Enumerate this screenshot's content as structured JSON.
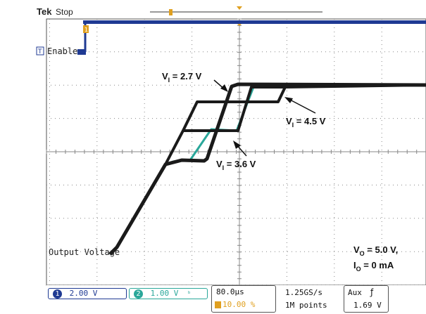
{
  "header": {
    "brand": "Tek",
    "state": "Stop"
  },
  "channels": {
    "ch1": {
      "num": "1",
      "scale": "2.00 V",
      "color": "#1f3a93"
    },
    "ch2": {
      "num": "2",
      "scale": "1.00 V",
      "coupling_icon": "bandwidth-limit-icon",
      "color": "#2aa79a"
    }
  },
  "markers": {
    "ch1_marker": "1",
    "trigger_marker": "T"
  },
  "labels": {
    "enable": "Enable",
    "output": "Output Voltage",
    "v27": {
      "pre": "V",
      "sub": "I",
      "post": " = 2.7 V"
    },
    "v45": {
      "pre": "V",
      "sub": "I",
      "post": " = 4.5 V"
    },
    "v36": {
      "pre": "V",
      "sub": "I",
      "post": " = 3.6 V"
    },
    "cond1": {
      "pre": "V",
      "sub": "O",
      "post": " = 5.0 V,"
    },
    "cond2": {
      "pre": "I",
      "sub": "O",
      "post": " = 0 mA"
    }
  },
  "timebase": {
    "scale": "80.0μs",
    "position": "10.00 %"
  },
  "acquisition": {
    "rate": "1.25GS/s",
    "length": "1M points"
  },
  "trigger": {
    "source": "Aux",
    "slope_icon": "rising-edge-icon",
    "level": "1.69 V"
  },
  "colors": {
    "trace_black": "#1a1a1a",
    "trace_teal": "#2aa79a",
    "enable_blue": "#1f3a93",
    "marker_orange": "#e0a020",
    "grid": "#888888"
  }
}
